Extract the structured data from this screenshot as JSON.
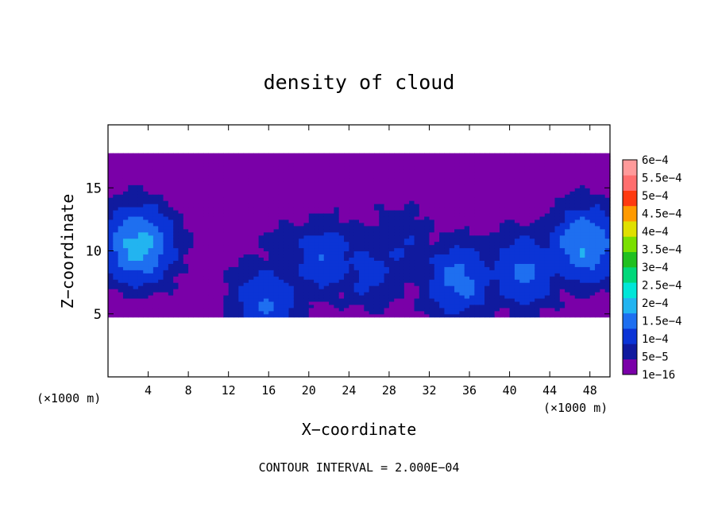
{
  "chart_data": {
    "type": "heatmap",
    "title": "density of cloud",
    "xlabel": "X−coordinate",
    "ylabel": "Z−coordinate",
    "x_unit_left": "(×1000 m)",
    "x_unit_right": "(×1000 m)",
    "footer": "CONTOUR INTERVAL = 2.000E−04",
    "xlim": [
      0,
      50
    ],
    "ylim": [
      0,
      20
    ],
    "x_ticks": [
      4,
      8,
      12,
      16,
      20,
      24,
      28,
      32,
      36,
      40,
      44,
      48
    ],
    "x_tick_labels": [
      "4",
      "8",
      "12",
      "16",
      "20",
      "24",
      "28",
      "32",
      "36",
      "40",
      "44",
      "48"
    ],
    "y_ticks": [
      5,
      10,
      15
    ],
    "y_tick_labels": [
      "5",
      "10",
      "15"
    ],
    "colorbar": {
      "levels": [
        "1e−16",
        "5e−5",
        "1e−4",
        "1.5e−4",
        "2e−4",
        "2.5e−4",
        "3e−4",
        "3.5e−4",
        "4e−4",
        "4.5e−4",
        "5e−4",
        "5.5e−4",
        "6e−4"
      ],
      "colors": [
        "#7a00a8",
        "#101a9e",
        "#0b34d6",
        "#1e6ff0",
        "#22b4f0",
        "#00e6d8",
        "#00d87a",
        "#20c020",
        "#7ae000",
        "#e0e000",
        "#ff9a00",
        "#ff3a10",
        "#ff6e6e",
        "#ff9a9a"
      ]
    },
    "field": {
      "cloud_base_z": 4.8,
      "cloud_top_z": 17.8,
      "cores": [
        {
          "x": 3,
          "z": 10.5,
          "peak": 0.00022
        },
        {
          "x": 47.5,
          "z": 10.5,
          "peak": 0.0002
        },
        {
          "x": 35,
          "z": 7.7,
          "peak": 0.00017
        },
        {
          "x": 41.5,
          "z": 8.5,
          "peak": 0.00016
        },
        {
          "x": 21.5,
          "z": 9.5,
          "peak": 0.00014
        },
        {
          "x": 26,
          "z": 8.5,
          "peak": 0.00012
        },
        {
          "x": 29,
          "z": 10.5,
          "peak": 0.0001
        },
        {
          "x": 15.8,
          "z": 6.0,
          "peak": 0.00015
        },
        {
          "x": 18,
          "z": 9.5,
          "peak": 8e-05
        }
      ]
    }
  }
}
